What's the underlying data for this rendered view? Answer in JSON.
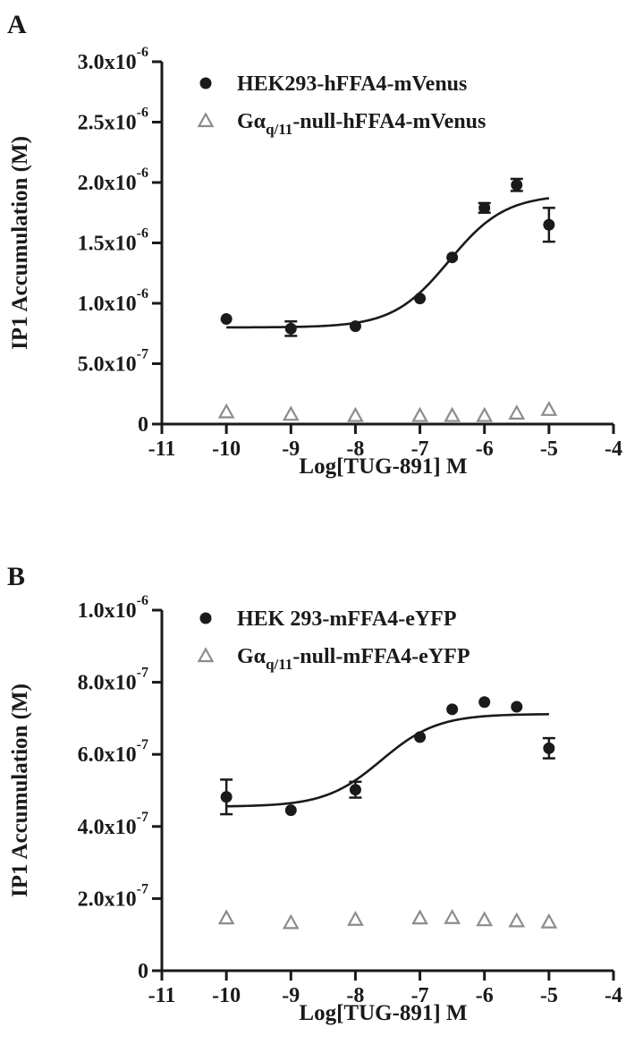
{
  "chart_data": [
    {
      "type": "scatter",
      "panel_label": "A",
      "xlabel": "Log[TUG-891] M",
      "ylabel": "IP1 Accumulation (M)",
      "xlim": [
        -11,
        -4
      ],
      "ylim": [
        0,
        3e-06
      ],
      "x_ticks": [
        -11,
        -10,
        -9,
        -8,
        -7,
        -6,
        -5,
        -4
      ],
      "x_tick_labels": [
        "-11",
        "-10",
        "-9",
        "-8",
        "-7",
        "-6",
        "-5",
        "-4"
      ],
      "y_ticks": [
        {
          "value": 0,
          "mantissa": "0",
          "exponent": ""
        },
        {
          "value": 5e-07,
          "mantissa": "5.0x10",
          "exponent": "-7"
        },
        {
          "value": 1e-06,
          "mantissa": "1.0x10",
          "exponent": "-6"
        },
        {
          "value": 1.5e-06,
          "mantissa": "1.5x10",
          "exponent": "-6"
        },
        {
          "value": 2e-06,
          "mantissa": "2.0x10",
          "exponent": "-6"
        },
        {
          "value": 2.5e-06,
          "mantissa": "2.5x10",
          "exponent": "-6"
        },
        {
          "value": 3e-06,
          "mantissa": "3.0x10",
          "exponent": "-6"
        }
      ],
      "grid": false,
      "legend_position": "top-left",
      "series": [
        {
          "legend_main": "HEK293-hFFA4-mVenus",
          "legend_pre": "",
          "legend_sub": "",
          "legend_post": "",
          "marker": "circle",
          "color": "#1a1a1a",
          "x": [
            -10,
            -9,
            -8,
            -7,
            -6.5,
            -6,
            -5.5,
            -5
          ],
          "y": [
            8.7e-07,
            7.9e-07,
            8.1e-07,
            1.04e-06,
            1.38e-06,
            1.79e-06,
            1.98e-06,
            1.65e-06
          ],
          "err": [
            0,
            6e-08,
            0,
            0,
            0,
            4e-08,
            5e-08,
            1.4e-07
          ],
          "fit": {
            "bottom": 8e-07,
            "top": 1.9e-06,
            "logEC50": -6.55,
            "hill": 1.0,
            "x_range": [
              -10,
              -5
            ]
          }
        },
        {
          "legend_main": "",
          "legend_pre": "Gα",
          "legend_sub": "q/11",
          "legend_post": "-null-hFFA4-mVenus",
          "marker": "triangle",
          "color": "#8c8c8c",
          "x": [
            -10,
            -9,
            -8,
            -7,
            -6.5,
            -6,
            -5.5,
            -5
          ],
          "y": [
            1e-07,
            8e-08,
            7e-08,
            7e-08,
            7e-08,
            7e-08,
            9e-08,
            1.2e-07
          ],
          "err": [
            0,
            0,
            0,
            0,
            0,
            0,
            0,
            0
          ]
        }
      ]
    },
    {
      "type": "scatter",
      "panel_label": "B",
      "xlabel": "Log[TUG-891] M",
      "ylabel": "IP1 Accumulation (M)",
      "xlim": [
        -11,
        -4
      ],
      "ylim": [
        0,
        1e-06
      ],
      "x_ticks": [
        -11,
        -10,
        -9,
        -8,
        -7,
        -6,
        -5,
        -4
      ],
      "x_tick_labels": [
        "-11",
        "-10",
        "-9",
        "-8",
        "-7",
        "-6",
        "-5",
        "-4"
      ],
      "y_ticks": [
        {
          "value": 0,
          "mantissa": "0",
          "exponent": ""
        },
        {
          "value": 2e-07,
          "mantissa": "2.0x10",
          "exponent": "-7"
        },
        {
          "value": 4e-07,
          "mantissa": "4.0x10",
          "exponent": "-7"
        },
        {
          "value": 6e-07,
          "mantissa": "6.0x10",
          "exponent": "-7"
        },
        {
          "value": 8e-07,
          "mantissa": "8.0x10",
          "exponent": "-7"
        },
        {
          "value": 1e-06,
          "mantissa": "1.0x10",
          "exponent": "-6"
        }
      ],
      "grid": false,
      "legend_position": "top-left",
      "series": [
        {
          "legend_main": "HEK 293-mFFA4-eYFP",
          "legend_pre": "",
          "legend_sub": "",
          "legend_post": "",
          "marker": "circle",
          "color": "#1a1a1a",
          "x": [
            -10,
            -9,
            -8,
            -7,
            -6.5,
            -6,
            -5.5,
            -5
          ],
          "y": [
            4.82e-07,
            4.45e-07,
            5.02e-07,
            6.48e-07,
            7.25e-07,
            7.45e-07,
            7.32e-07,
            6.17e-07
          ],
          "err": [
            4.8e-08,
            0,
            2.2e-08,
            0,
            0,
            0,
            0,
            2.8e-08
          ],
          "fit": {
            "bottom": 4.55e-07,
            "top": 7.12e-07,
            "logEC50": -7.6,
            "hill": 1.0,
            "x_range": [
              -10,
              -5
            ]
          }
        },
        {
          "legend_main": "",
          "legend_pre": "Gα",
          "legend_sub": "q/11",
          "legend_post": "-null-mFFA4-eYFP",
          "marker": "triangle",
          "color": "#8c8c8c",
          "x": [
            -10,
            -9,
            -8,
            -7,
            -6.5,
            -6,
            -5.5,
            -5
          ],
          "y": [
            1.46e-07,
            1.33e-07,
            1.42e-07,
            1.46e-07,
            1.47e-07,
            1.41e-07,
            1.38e-07,
            1.35e-07
          ],
          "err": [
            0,
            0,
            0,
            0,
            0,
            0,
            0,
            0
          ]
        }
      ]
    }
  ]
}
